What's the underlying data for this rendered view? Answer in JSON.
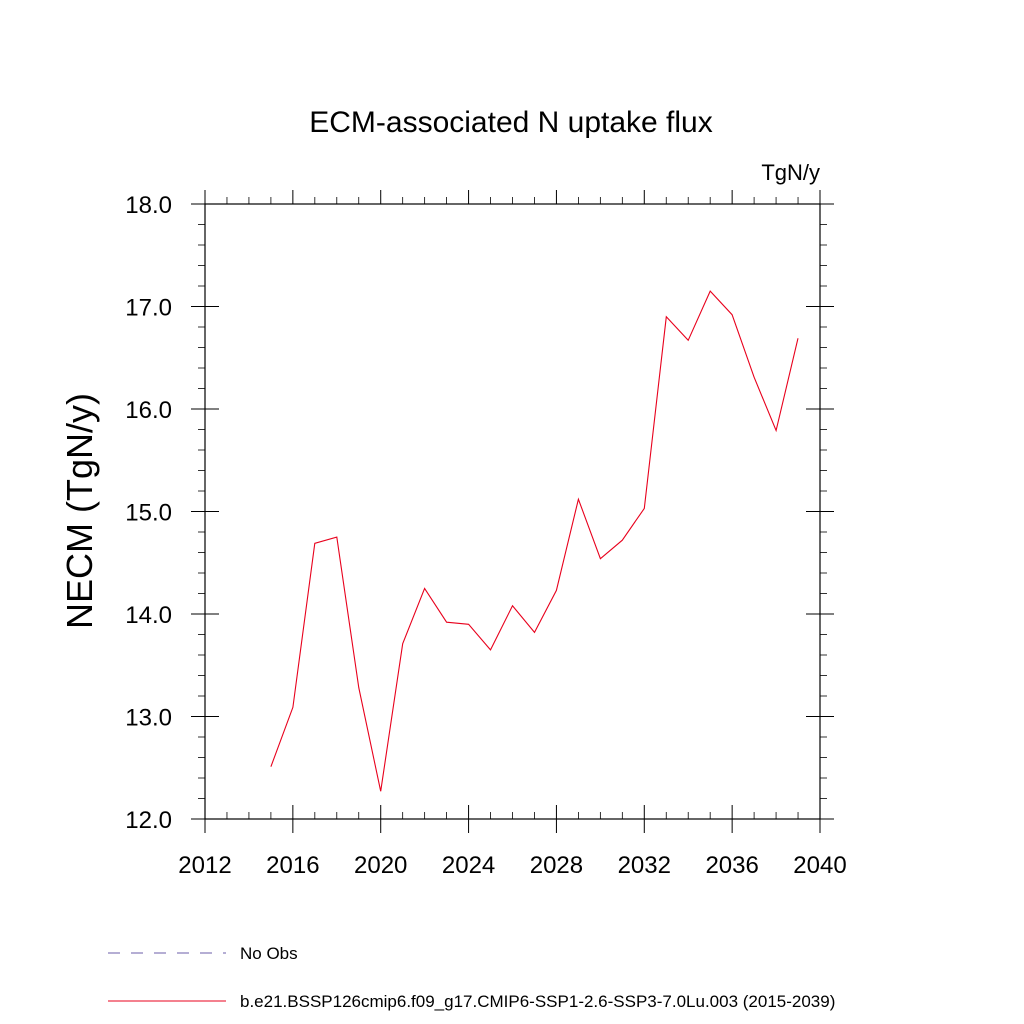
{
  "chart_data": {
    "type": "line",
    "title": "ECM-associated N uptake flux",
    "units": "TgN/y",
    "xlabel": "",
    "ylabel": "NECM  (TgN/y)",
    "xlim": [
      2012,
      2040
    ],
    "ylim": [
      12.0,
      18.0
    ],
    "xticks": [
      "2012",
      "2016",
      "2020",
      "2024",
      "2028",
      "2032",
      "2036",
      "2040"
    ],
    "yticks": [
      "12.0",
      "13.0",
      "14.0",
      "15.0",
      "16.0",
      "17.0",
      "18.0"
    ],
    "grid": false,
    "legend_position": "bottom",
    "series": [
      {
        "name": "No Obs",
        "color": "#6b5ea8",
        "style": "dashed",
        "x": [],
        "y": []
      },
      {
        "name": "b.e21.BSSP126cmip6.f09_g17.CMIP6-SSP1-2.6-SSP3-7.0Lu.003 (2015-2039)",
        "color": "#e8001c",
        "style": "solid",
        "x": [
          2015,
          2016,
          2017,
          2018,
          2019,
          2020,
          2021,
          2022,
          2023,
          2024,
          2025,
          2026,
          2027,
          2028,
          2029,
          2030,
          2031,
          2032,
          2033,
          2034,
          2035,
          2036,
          2037,
          2038,
          2039
        ],
        "y": [
          12.51,
          13.09,
          14.69,
          14.75,
          13.28,
          12.27,
          13.71,
          14.25,
          13.92,
          13.9,
          13.65,
          14.08,
          13.82,
          14.23,
          15.12,
          14.54,
          14.72,
          15.03,
          16.9,
          16.67,
          17.15,
          16.92,
          16.31,
          15.79,
          16.69
        ]
      }
    ]
  }
}
